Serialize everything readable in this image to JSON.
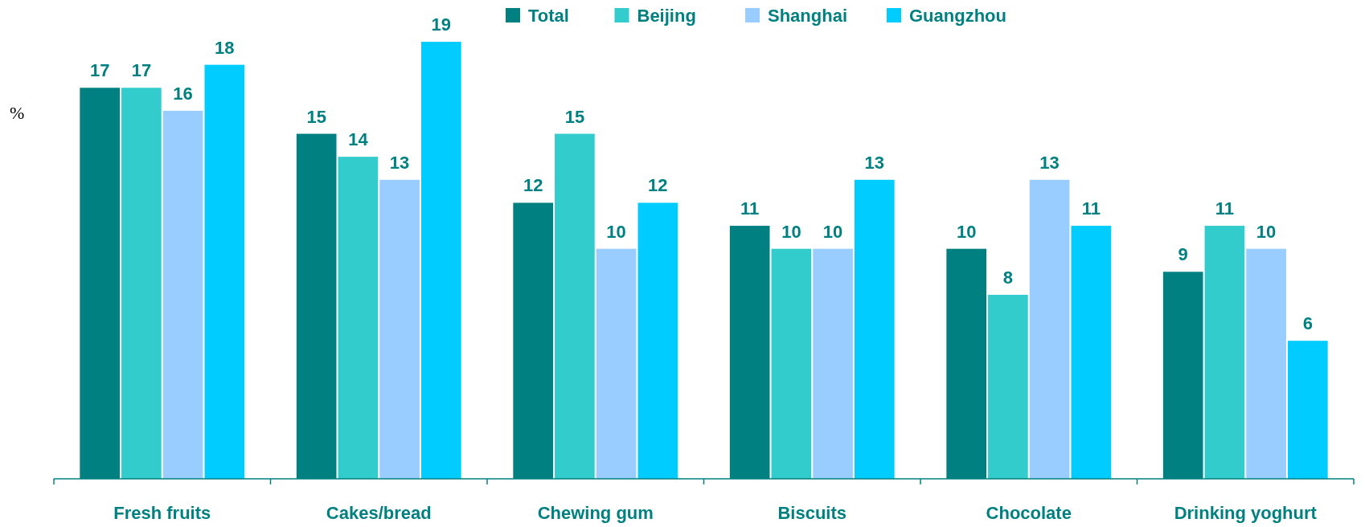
{
  "chart_data": {
    "type": "bar",
    "ylabel": "%",
    "categories": [
      "Fresh fruits",
      "Cakes/bread",
      "Chewing gum",
      "Biscuits",
      "Chocolate",
      "Drinking yoghurt"
    ],
    "series": [
      {
        "name": "Total",
        "color": "#008080",
        "values": [
          17,
          15,
          12,
          11,
          10,
          9
        ]
      },
      {
        "name": "Beijing",
        "color": "#33cccc",
        "values": [
          17,
          14,
          15,
          10,
          8,
          11
        ]
      },
      {
        "name": "Shanghai",
        "color": "#99ccff",
        "values": [
          16,
          13,
          10,
          10,
          13,
          10
        ]
      },
      {
        "name": "Guangzhou",
        "color": "#00ccff",
        "values": [
          18,
          19,
          12,
          13,
          11,
          6
        ]
      }
    ],
    "data_labels": true,
    "legend": "top"
  }
}
